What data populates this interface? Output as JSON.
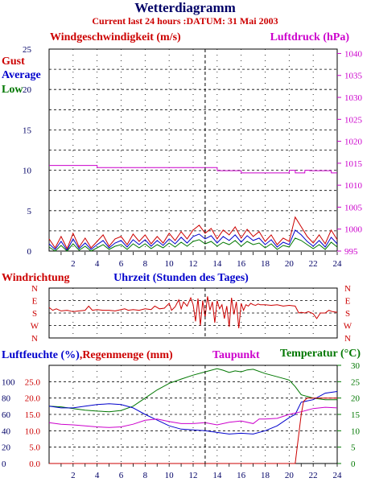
{
  "header": {
    "title": "Wetterdiagramm",
    "subtitle": "Current last 24 hours :DATUM: 31 Mai 2003"
  },
  "colors": {
    "red": "#cc0000",
    "blue": "#0000cc",
    "green": "#007700",
    "magenta": "#cc00cc",
    "grid": "#000000",
    "axis_left": "#000066",
    "axis_right": "#cc00cc"
  },
  "chart_data": [
    {
      "type": "line",
      "title": "Windgeschwindigkeit (m/s)",
      "right_title": "Luftdruck (hPa)",
      "legend": [
        "Gust",
        "Average",
        "Low"
      ],
      "xlim": [
        0,
        24
      ],
      "ylim": [
        0,
        25
      ],
      "y2lim": [
        995,
        1041
      ],
      "x_ticks": [
        "2",
        "4",
        "6",
        "8",
        "10",
        "12",
        "14",
        "16",
        "18",
        "20",
        "22",
        "24"
      ],
      "y_ticks": [
        "0",
        "5",
        "10",
        "15",
        "20",
        "25"
      ],
      "y2_ticks": [
        "995",
        "1000",
        "1005",
        "1010",
        "1015",
        "1020",
        "1025",
        "1030",
        "1035",
        "1040"
      ],
      "marker_x": 13,
      "series": [
        {
          "name": "Gust",
          "axis": "left",
          "color": "red",
          "x": [
            0,
            0.5,
            1,
            1.5,
            2,
            2.5,
            3,
            3.5,
            4,
            4.5,
            5,
            5.5,
            6,
            6.5,
            7,
            7.5,
            8,
            8.5,
            9,
            9.5,
            10,
            10.5,
            11,
            11.5,
            12,
            12.5,
            13,
            13.5,
            14,
            14.5,
            15,
            15.5,
            16,
            16.5,
            17,
            17.5,
            18,
            18.5,
            19,
            19.5,
            20,
            20.5,
            21,
            21.5,
            22,
            22.5,
            23,
            23.5,
            24
          ],
          "y": [
            1.5,
            0.4,
            1.8,
            0.3,
            2.2,
            0.5,
            1.6,
            0.4,
            1.2,
            2.0,
            0.6,
            1.5,
            1.8,
            0.8,
            2.1,
            1.2,
            2.0,
            0.9,
            1.8,
            1.0,
            2.2,
            1.3,
            2.4,
            1.5,
            2.6,
            3.2,
            2.2,
            2.8,
            1.5,
            2.6,
            2.0,
            3.0,
            1.6,
            2.7,
            1.8,
            2.4,
            1.2,
            2.0,
            0.8,
            1.6,
            1.2,
            4.2,
            3.0,
            1.8,
            1.0,
            2.0,
            0.9,
            2.6,
            1.4
          ]
        },
        {
          "name": "Average",
          "axis": "left",
          "color": "blue",
          "x": [
            0,
            0.5,
            1,
            1.5,
            2,
            2.5,
            3,
            3.5,
            4,
            4.5,
            5,
            5.5,
            6,
            6.5,
            7,
            7.5,
            8,
            8.5,
            9,
            9.5,
            10,
            10.5,
            11,
            11.5,
            12,
            12.5,
            13,
            13.5,
            14,
            14.5,
            15,
            15.5,
            16,
            16.5,
            17,
            17.5,
            18,
            18.5,
            19,
            19.5,
            20,
            20.5,
            21,
            21.5,
            22,
            22.5,
            23,
            23.5,
            24
          ],
          "y": [
            0.9,
            0.2,
            1.2,
            0.1,
            1.5,
            0.3,
            1.0,
            0.2,
            0.8,
            1.3,
            0.4,
            1.0,
            1.3,
            0.5,
            1.4,
            0.8,
            1.4,
            0.6,
            1.3,
            0.7,
            1.5,
            0.9,
            1.7,
            1.0,
            1.8,
            2.1,
            1.5,
            1.9,
            1.0,
            1.8,
            1.3,
            2.0,
            1.1,
            1.9,
            1.3,
            1.6,
            0.8,
            1.4,
            0.5,
            1.1,
            0.8,
            2.6,
            2.0,
            1.2,
            0.6,
            1.3,
            0.5,
            1.7,
            0.9
          ]
        },
        {
          "name": "Low",
          "axis": "left",
          "color": "green",
          "x": [
            0,
            0.5,
            1,
            1.5,
            2,
            2.5,
            3,
            3.5,
            4,
            4.5,
            5,
            5.5,
            6,
            6.5,
            7,
            7.5,
            8,
            8.5,
            9,
            9.5,
            10,
            10.5,
            11,
            11.5,
            12,
            12.5,
            13,
            13.5,
            14,
            14.5,
            15,
            15.5,
            16,
            16.5,
            17,
            17.5,
            18,
            18.5,
            19,
            19.5,
            20,
            20.5,
            21,
            21.5,
            22,
            22.5,
            23,
            23.5,
            24
          ],
          "y": [
            0.5,
            0.0,
            0.7,
            0.0,
            0.9,
            0.1,
            0.6,
            0.0,
            0.4,
            0.8,
            0.2,
            0.6,
            0.8,
            0.2,
            0.9,
            0.4,
            0.9,
            0.3,
            0.8,
            0.4,
            1.0,
            0.5,
            1.1,
            0.6,
            1.2,
            1.4,
            0.9,
            1.2,
            0.6,
            1.1,
            0.8,
            1.3,
            0.6,
            1.2,
            0.8,
            1.0,
            0.4,
            0.9,
            0.2,
            0.7,
            0.5,
            1.6,
            1.3,
            0.8,
            0.3,
            0.8,
            0.2,
            1.1,
            0.5
          ]
        },
        {
          "name": "Luftdruck",
          "axis": "right",
          "color": "magenta",
          "x": [
            0,
            4,
            4.01,
            14,
            14.01,
            16,
            16.01,
            20,
            20.01,
            20.5,
            20.51,
            21.3,
            21.31,
            21.7,
            21.71,
            23.5,
            23.51,
            24
          ],
          "y": [
            1014.5,
            1014.5,
            1014.0,
            1014.0,
            1013.3,
            1013.3,
            1012.8,
            1012.8,
            1013.4,
            1013.4,
            1012.8,
            1012.8,
            1013.4,
            1013.4,
            1013.3,
            1013.3,
            1012.8,
            1012.8
          ]
        }
      ]
    },
    {
      "type": "line",
      "title": "Windrichtung",
      "xlabel": "Uhrzeit (Stunden des Tages)",
      "xlim": [
        0,
        24
      ],
      "y_ticks": [
        "N",
        "W",
        "S",
        "E",
        "N"
      ],
      "y_values": [
        0,
        90,
        180,
        270,
        360
      ],
      "marker_x": 13,
      "series": [
        {
          "name": "Windrichtung",
          "color": "red",
          "x": [
            0,
            0.3,
            0.6,
            1,
            1.5,
            2,
            2.5,
            3,
            3.3,
            3.6,
            4,
            4.5,
            5,
            5.5,
            6,
            6.3,
            6.6,
            7,
            7.5,
            8,
            8.5,
            8.8,
            9.2,
            9.6,
            10,
            10.2,
            10.5,
            10.8,
            11,
            11.2,
            11.5,
            11.8,
            12,
            12.2,
            12.4,
            12.6,
            12.8,
            13,
            13.2,
            13.4,
            13.6,
            13.8,
            14,
            14.2,
            14.4,
            14.6,
            14.8,
            15,
            15.2,
            15.4,
            15.6,
            15.8,
            16,
            16.2,
            16.4,
            16.6,
            16.8,
            17,
            17.2,
            17.4,
            17.6,
            17.8,
            18,
            18.5,
            19,
            19.5,
            20,
            20.5,
            20.8,
            21,
            21.3,
            21.6,
            22,
            22.3,
            22.6,
            23,
            23.3,
            23.6,
            24
          ],
          "y": [
            220,
            200,
            210,
            195,
            200,
            190,
            195,
            200,
            230,
            200,
            205,
            200,
            200,
            195,
            205,
            210,
            200,
            205,
            200,
            210,
            205,
            230,
            210,
            215,
            250,
            200,
            225,
            275,
            210,
            260,
            230,
            290,
            240,
            120,
            285,
            90,
            270,
            150,
            300,
            200,
            260,
            110,
            270,
            210,
            240,
            140,
            230,
            80,
            290,
            170,
            260,
            70,
            250,
            200,
            240,
            230,
            250,
            240,
            235,
            245,
            240,
            240,
            240,
            235,
            240,
            230,
            235,
            230,
            180,
            185,
            180,
            190,
            175,
            140,
            180,
            180,
            200,
            190,
            185
          ]
        }
      ]
    },
    {
      "type": "line",
      "title": "Luftfeuchte (%),Regenmenge (mm)",
      "mid_title": "Taupunkt",
      "right_title": "Temperatur (°C)",
      "xlim": [
        0,
        24
      ],
      "humidity_ticks": [
        "0",
        "20",
        "40",
        "60",
        "80",
        "100"
      ],
      "rain_ticks": [
        "0.0",
        "5.0",
        "10.0",
        "15.0",
        "20.0",
        "25.0"
      ],
      "temp_ticks": [
        "0",
        "5",
        "10",
        "15",
        "20",
        "25",
        "30"
      ],
      "x_ticks": [
        "2",
        "4",
        "6",
        "8",
        "10",
        "12",
        "14",
        "16",
        "18",
        "20",
        "22",
        "24"
      ],
      "marker_x": 13,
      "series": [
        {
          "name": "Temperatur",
          "axis": "temp",
          "color": "green",
          "x": [
            0,
            1,
            2,
            3,
            4,
            5,
            6,
            7,
            8,
            9,
            10,
            11,
            12,
            13,
            14,
            14.5,
            15,
            15.5,
            16,
            16.5,
            17,
            18,
            19,
            20,
            20.5,
            21,
            22,
            23,
            24
          ],
          "y": [
            17.5,
            17.3,
            16.8,
            16.3,
            16,
            15.8,
            16.2,
            17.5,
            20,
            22.5,
            24.5,
            25.8,
            27,
            28,
            29,
            28.5,
            27.8,
            28.3,
            28,
            28.6,
            28.8,
            27.5,
            26.5,
            25.5,
            23.5,
            21,
            20,
            19.5,
            19.5
          ]
        },
        {
          "name": "Luftfeuchte",
          "axis": "humidity",
          "color": "blue",
          "x": [
            0,
            1,
            2,
            3,
            4,
            5,
            6,
            7,
            8,
            9,
            10,
            11,
            12,
            13,
            14,
            15,
            16,
            17,
            18,
            19,
            20,
            20.5,
            21,
            22,
            23,
            24
          ],
          "y": [
            70,
            68,
            68,
            70,
            72,
            73,
            72,
            68,
            60,
            53,
            46,
            42,
            41,
            40,
            38,
            36,
            37,
            36,
            40,
            46,
            56,
            60,
            75,
            78,
            86,
            88
          ]
        },
        {
          "name": "Taupunkt",
          "axis": "temp",
          "color": "magenta",
          "x": [
            0,
            1,
            2,
            3,
            4,
            5,
            6,
            7,
            8,
            9,
            10,
            11,
            12,
            13,
            14,
            15,
            16,
            17,
            17.5,
            18,
            19,
            20,
            21,
            22,
            23,
            24
          ],
          "y": [
            12.5,
            12.0,
            11.8,
            11.5,
            11.2,
            11.0,
            11.2,
            12.0,
            13.2,
            13.6,
            12.8,
            12.2,
            12.2,
            12.5,
            11.8,
            12.6,
            13.0,
            12.2,
            13.6,
            13.6,
            13.8,
            15,
            15.8,
            16.8,
            17.2,
            17
          ]
        },
        {
          "name": "Regenmenge",
          "axis": "rain",
          "color": "red",
          "x": [
            0,
            20.5,
            21,
            21.2,
            21.5,
            22,
            23,
            24
          ],
          "y": [
            0,
            0,
            15,
            19,
            20,
            20,
            20,
            20
          ]
        }
      ]
    }
  ]
}
